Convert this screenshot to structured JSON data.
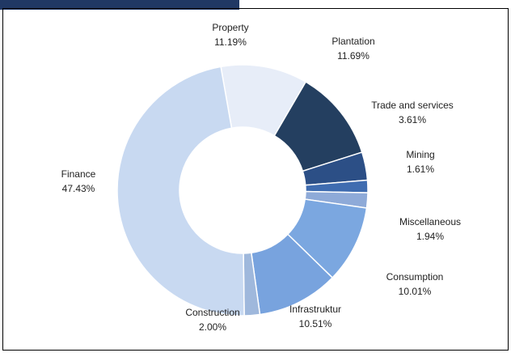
{
  "chart_data": {
    "type": "donut",
    "categories": [
      "Property",
      "Plantation",
      "Trade and services",
      "Mining",
      "Miscellaneous",
      "Consumption",
      "Infrastruktur",
      "Construction",
      "Finance"
    ],
    "values": [
      11.19,
      11.69,
      3.61,
      1.61,
      1.94,
      10.01,
      10.51,
      2.0,
      47.43
    ],
    "value_labels": [
      "11.19%",
      "11.69%",
      "3.61%",
      "1.61%",
      "1.94%",
      "10.01%",
      "10.51%",
      "2.00%",
      "47.43%"
    ],
    "colors": [
      "#e7edf8",
      "#243f60",
      "#2c4f86",
      "#3f6cb0",
      "#8eaad8",
      "#7ba7e0",
      "#78a3de",
      "#9fb8dc",
      "#c8d9f1"
    ]
  }
}
